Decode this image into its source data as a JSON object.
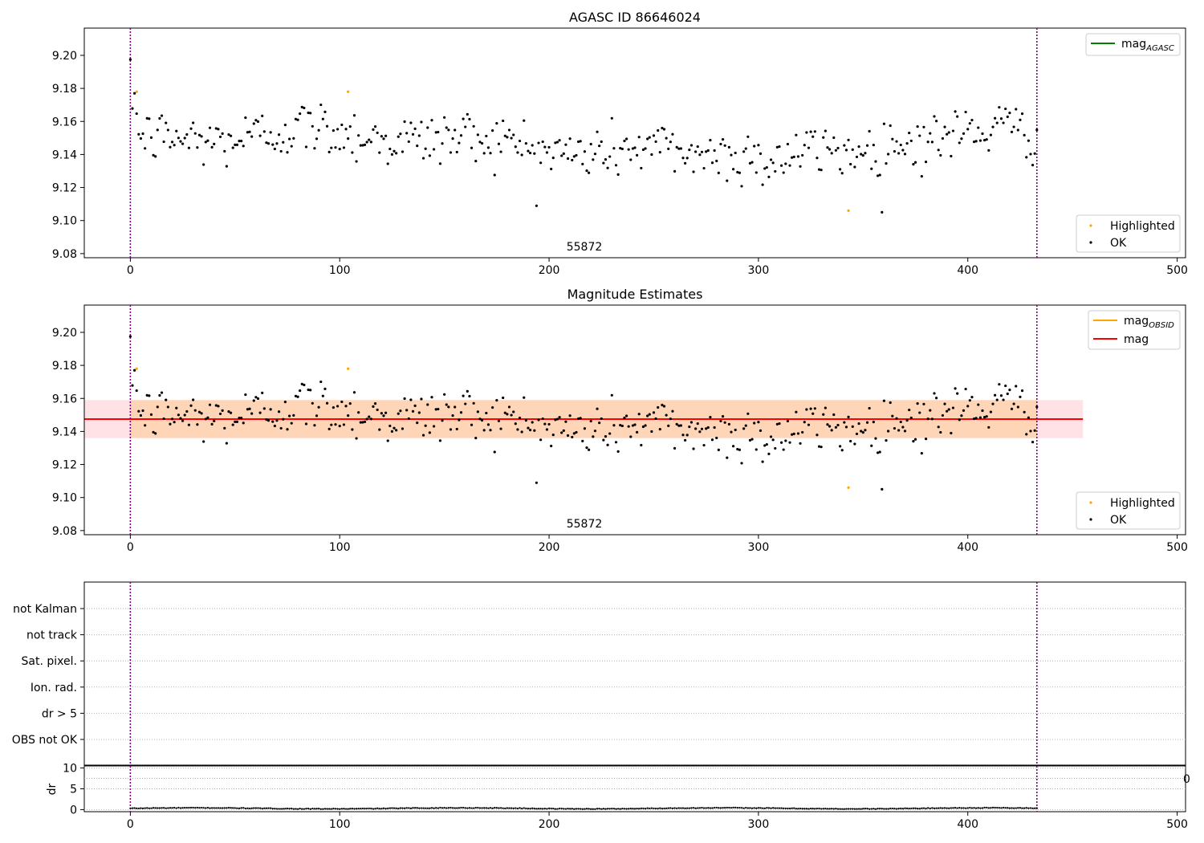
{
  "figure": {
    "epoch_label": "55872",
    "legend_ok": "OK",
    "legend_highlighted": "Highlighted"
  },
  "chart_data": [
    {
      "type": "scatter",
      "title": "AGASC ID 86646024",
      "xlim": [
        -22,
        504
      ],
      "ylim": [
        9.0775,
        9.2165
      ],
      "x_ticks": [
        0,
        100,
        200,
        300,
        400,
        500
      ],
      "y_ticks": [
        9.08,
        9.1,
        9.12,
        9.14,
        9.16,
        9.18,
        9.2
      ],
      "y_tick_labels": [
        "9.08",
        "9.10",
        "9.12",
        "9.14",
        "9.16",
        "9.18",
        "9.20"
      ],
      "vlines": [
        0,
        433
      ],
      "annotation": "55872",
      "legend_top": [
        {
          "label_main": "mag",
          "label_sub": "AGASC",
          "color": "#008000"
        }
      ],
      "series": [
        {
          "name": "OK",
          "color": "#000000",
          "n": 434,
          "mean": 9.147
        },
        {
          "name": "Highlighted",
          "color": "#ffa500",
          "points": [
            [
              3,
              9.178
            ],
            [
              104,
              9.178
            ],
            [
              343,
              9.106
            ]
          ]
        }
      ],
      "grid": false
    },
    {
      "type": "scatter",
      "title": "Magnitude Estimates",
      "xlim": [
        -22,
        504
      ],
      "ylim": [
        9.0775,
        9.2165
      ],
      "x_ticks": [
        0,
        100,
        200,
        300,
        400,
        500
      ],
      "y_ticks": [
        9.08,
        9.1,
        9.12,
        9.14,
        9.16,
        9.18,
        9.2
      ],
      "y_tick_labels": [
        "9.08",
        "9.10",
        "9.12",
        "9.14",
        "9.16",
        "9.18",
        "9.20"
      ],
      "vlines": [
        0,
        433
      ],
      "annotation": "55872",
      "mag_line": {
        "value": 9.1475,
        "color": "#ff0000",
        "band": [
          9.136,
          9.159
        ],
        "band_color": "#ffb6c1",
        "x_range": [
          -22,
          455
        ]
      },
      "mag_obsid_line": {
        "value": 9.1475,
        "color": "#ffa500",
        "band": [
          9.136,
          9.159
        ],
        "x_range": [
          0,
          433
        ]
      },
      "legend_top": [
        {
          "label_main": "mag",
          "label_sub": "OBSID",
          "color": "#ffa500"
        },
        {
          "label_main": "mag",
          "label_sub": "",
          "color": "#ff0000"
        }
      ],
      "series": [
        {
          "name": "OK",
          "color": "#000000",
          "n": 434,
          "mean": 9.147
        },
        {
          "name": "Highlighted",
          "color": "#ffa500",
          "points": [
            [
              3,
              9.178
            ],
            [
              104,
              9.178
            ],
            [
              343,
              9.106
            ]
          ]
        }
      ],
      "grid": false
    },
    {
      "type": "table",
      "categories": [
        "not Kalman",
        "not track",
        "Sat. pixel.",
        "Ion. rad.",
        "dr > 5",
        "OBS not OK"
      ],
      "flags_set": [],
      "xlim": [
        -22,
        504
      ],
      "vlines": [
        0,
        433
      ],
      "grid": true
    },
    {
      "type": "line",
      "ylabel": "dr",
      "xlim": [
        -22,
        504
      ],
      "ylim": [
        -0.5,
        10.5
      ],
      "x_ticks": [
        0,
        100,
        200,
        300,
        400,
        500
      ],
      "y_ticks": [
        0,
        5,
        10
      ],
      "y_tick_labels": [
        "0",
        "5",
        "10"
      ],
      "clipped_tick_label": "0",
      "vlines": [
        0,
        433
      ],
      "series": [
        {
          "name": "dr",
          "color": "#000000",
          "n": 434,
          "typical": 0.3
        }
      ],
      "grid": true
    }
  ]
}
